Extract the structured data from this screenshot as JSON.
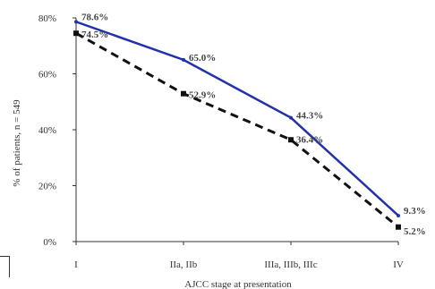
{
  "chart_data": {
    "type": "line",
    "categories": [
      "I",
      "IIa, IIb",
      "IIIa, IIIb, IIIc",
      "IV"
    ],
    "series": [
      {
        "values": [
          78.6,
          65.0,
          44.3,
          9.3
        ],
        "labels": [
          "78.6%",
          "65.0%",
          "44.3%",
          "9.3%"
        ],
        "color": "#2233aa",
        "style": "solid"
      },
      {
        "values": [
          74.5,
          52.9,
          36.4,
          5.2
        ],
        "labels": [
          "74.5%",
          "52.9%",
          "36.4%",
          "5.2%"
        ],
        "color": "#111111",
        "style": "dashed"
      }
    ],
    "title": "",
    "xlabel": "AJCC stage at presentation",
    "ylabel": "% of patients, n = 549",
    "ylim": [
      0,
      80
    ],
    "yticks": [
      "0%",
      "20%",
      "40%",
      "60%",
      "80%"
    ],
    "grid": false,
    "legend": "none"
  }
}
